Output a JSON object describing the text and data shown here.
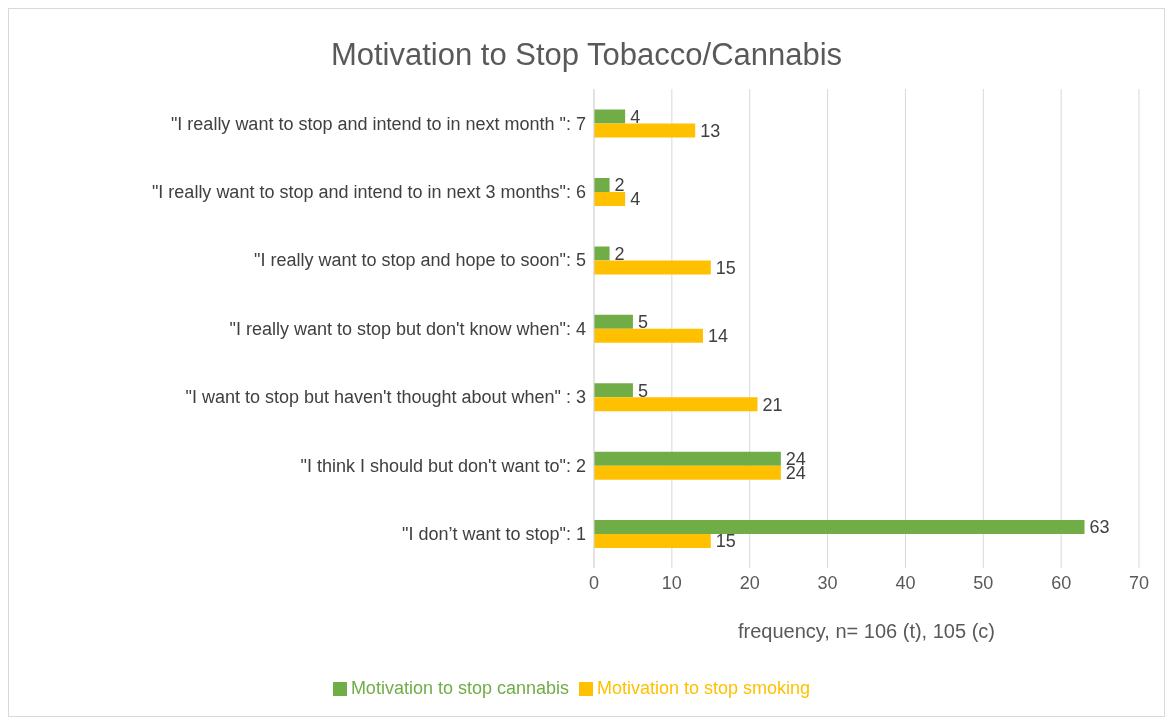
{
  "chart_data": {
    "type": "bar",
    "orientation": "horizontal",
    "title": "Motivation to Stop Tobacco/Cannabis",
    "xlabel": "frequency, n= 106 (t), 105 (c)",
    "categories": [
      "\"I really want to stop and intend to in next month \": 7",
      "\"I really want to stop and intend to in next 3 months\": 6",
      "\"I really want to stop and hope to soon\": 5",
      "\"I really want to stop but don't know when\": 4",
      "\"I want to stop but haven't thought about when\" : 3",
      "\"I think I should but don't want to\": 2",
      "\"I don’t want to stop\": 1"
    ],
    "series": [
      {
        "name": "Motivation to stop cannabis",
        "color": "#70ad47",
        "values": [
          4,
          2,
          2,
          5,
          5,
          24,
          63
        ]
      },
      {
        "name": "Motivation to stop smoking",
        "color": "#ffc000",
        "values": [
          13,
          4,
          15,
          14,
          21,
          24,
          15
        ]
      }
    ],
    "xlim": [
      0,
      70
    ],
    "xticks": [
      0,
      10,
      20,
      30,
      40,
      50,
      60,
      70
    ],
    "grid": "x",
    "legend": "bottom",
    "data_labels": true
  }
}
